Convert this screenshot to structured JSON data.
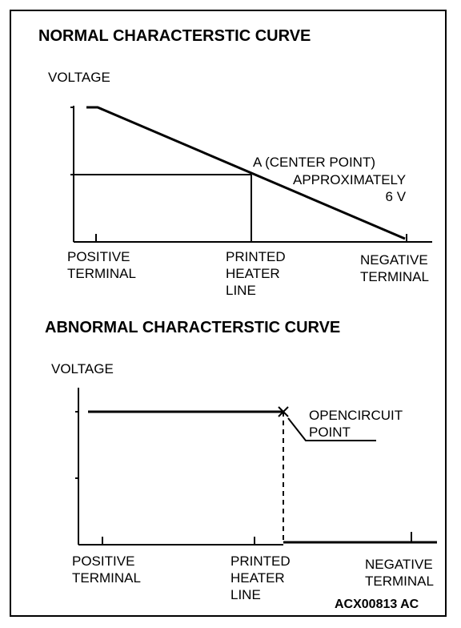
{
  "normal_curve": {
    "title": "NORMAL CHARACTERSTIC CURVE",
    "y_label": "VOLTAGE",
    "x_labels": {
      "positive": "POSITIVE\nTERMINAL",
      "printed": "PRINTED\nHEATER\nLINE",
      "negative": "NEGATIVE\nTERMINAL"
    },
    "annotation_point": "A (CENTER POINT)",
    "annotation_approx": "APPROXIMATELY\n6 V"
  },
  "abnormal_curve": {
    "title": "ABNORMAL CHARACTERSTIC CURVE",
    "y_label": "VOLTAGE",
    "x_labels": {
      "positive": "POSITIVE\nTERMINAL",
      "printed": "PRINTED\nHEATER\nLINE",
      "negative": "NEGATIVE\nTERMINAL"
    },
    "annotation_open": "OPENCIRCUIT\nPOINT"
  },
  "figure_code": "ACX00813 AC",
  "colors": {
    "ink": "#000000",
    "background": "#ffffff"
  }
}
